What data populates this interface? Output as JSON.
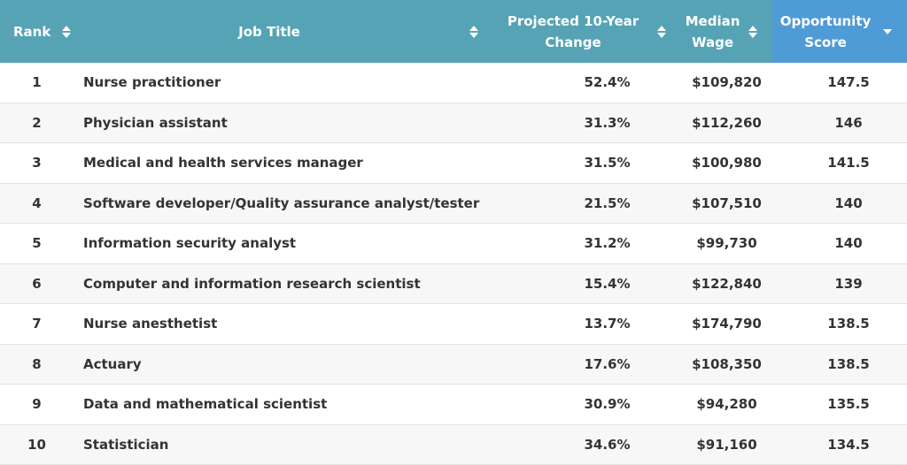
{
  "header": {
    "columns": [
      {
        "label_line1": "Rank",
        "label_line2": "",
        "sort": "both"
      },
      {
        "label_line1": "Job Title",
        "label_line2": "",
        "sort": "both"
      },
      {
        "label_line1": "Projected 10-Year",
        "label_line2": "Change",
        "sort": "both"
      },
      {
        "label_line1": "Median",
        "label_line2": "Wage",
        "sort": "both"
      },
      {
        "label_line1": "Opportunity",
        "label_line2": "Score",
        "sort": "desc"
      }
    ],
    "colors": {
      "header_bg": "#55a3b5",
      "active_header_bg": "#4f9bd6"
    }
  },
  "rows": [
    {
      "rank": "1",
      "title": "Nurse practitioner",
      "change": "52.4%",
      "wage": "$109,820",
      "score": "147.5"
    },
    {
      "rank": "2",
      "title": "Physician assistant",
      "change": "31.3%",
      "wage": "$112,260",
      "score": "146"
    },
    {
      "rank": "3",
      "title": "Medical and health services manager",
      "change": "31.5%",
      "wage": "$100,980",
      "score": "141.5"
    },
    {
      "rank": "4",
      "title": "Software developer/Quality assurance analyst/tester",
      "change": "21.5%",
      "wage": "$107,510",
      "score": "140"
    },
    {
      "rank": "5",
      "title": "Information security analyst",
      "change": "31.2%",
      "wage": "$99,730",
      "score": "140"
    },
    {
      "rank": "6",
      "title": "Computer and information research scientist",
      "change": "15.4%",
      "wage": "$122,840",
      "score": "139"
    },
    {
      "rank": "7",
      "title": "Nurse anesthetist",
      "change": "13.7%",
      "wage": "$174,790",
      "score": "138.5"
    },
    {
      "rank": "8",
      "title": "Actuary",
      "change": "17.6%",
      "wage": "$108,350",
      "score": "138.5"
    },
    {
      "rank": "9",
      "title": "Data and mathematical scientist",
      "change": "30.9%",
      "wage": "$94,280",
      "score": "135.5"
    },
    {
      "rank": "10",
      "title": "Statistician",
      "change": "34.6%",
      "wage": "$91,160",
      "score": "134.5"
    }
  ]
}
